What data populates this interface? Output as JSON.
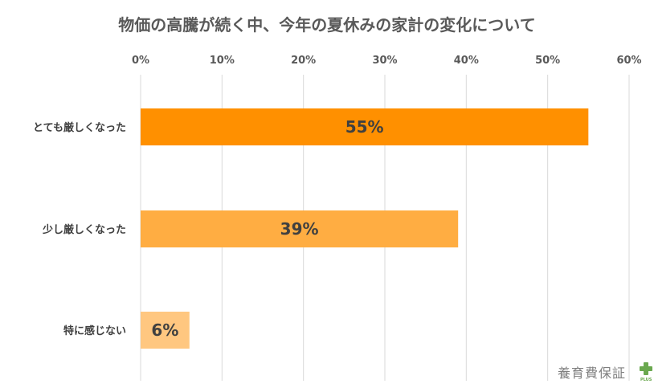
{
  "chart_data": {
    "type": "bar",
    "orientation": "horizontal",
    "title": "物価の高騰が続く中、今年の夏休みの家計の変化について",
    "categories": [
      "とても厳しくなった",
      "少し厳しくなった",
      "特に感じない"
    ],
    "values": [
      55,
      39,
      6
    ],
    "data_labels": [
      "55%",
      "39%",
      "6%"
    ],
    "xlim": [
      0,
      60
    ],
    "ticks": [
      "0%",
      "10%",
      "20%",
      "30%",
      "40%",
      "50%",
      "60%"
    ],
    "grid": true,
    "axis_position": "top",
    "colors": [
      "#ff9000",
      "#ffad42",
      "#ffc780"
    ]
  },
  "logo": {
    "text": "養育費保証",
    "plus": "PLUS",
    "cross_color": "#6aa84f"
  }
}
